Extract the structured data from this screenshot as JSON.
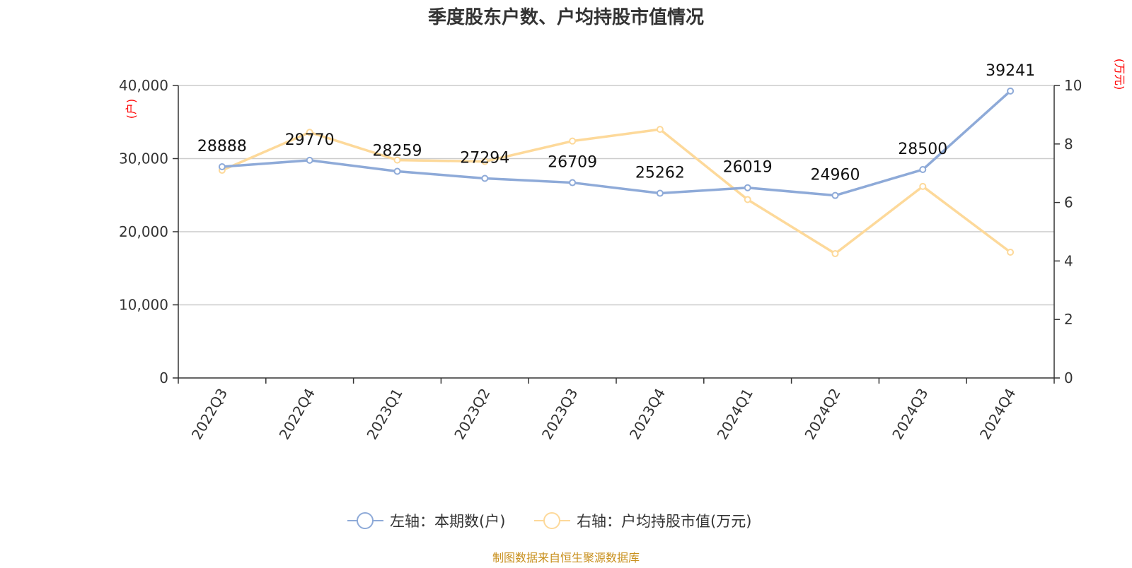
{
  "chart_data": {
    "type": "line",
    "title": "季度股东户数、户均持股市值情况",
    "categories": [
      "2022Q3",
      "2022Q4",
      "2023Q1",
      "2023Q2",
      "2023Q3",
      "2023Q4",
      "2024Q1",
      "2024Q2",
      "2024Q3",
      "2024Q4"
    ],
    "y_left": {
      "unit": "(户)",
      "min": 0,
      "max": 40000,
      "ticks": [
        0,
        10000,
        20000,
        30000,
        40000
      ],
      "tick_labels": [
        "0",
        "10,000",
        "20,000",
        "30,000",
        "40,000"
      ]
    },
    "y_right": {
      "unit": "(万元)",
      "min": 0,
      "max": 10,
      "ticks": [
        0,
        2,
        4,
        6,
        8,
        10
      ],
      "tick_labels": [
        "0",
        "2",
        "4",
        "6",
        "8",
        "10"
      ]
    },
    "grid": true,
    "legend_position": "bottom",
    "series": [
      {
        "name": "左轴：本期数(户)",
        "axis": "left",
        "color": "#8eaad8",
        "values": [
          28888,
          29770,
          28259,
          27294,
          26709,
          25262,
          26019,
          24960,
          28500,
          39241
        ],
        "labels": [
          "28888",
          "29770",
          "28259",
          "27294",
          "26709",
          "25262",
          "26019",
          "24960",
          "28500",
          "39241"
        ]
      },
      {
        "name": "右轴：户均持股市值(万元)",
        "axis": "right",
        "color": "#fdd99a",
        "values": [
          7.1,
          8.4,
          7.45,
          7.4,
          8.1,
          8.5,
          6.1,
          4.25,
          6.55,
          4.3
        ]
      }
    ],
    "source": "制图数据来自恒生聚源数据库"
  }
}
